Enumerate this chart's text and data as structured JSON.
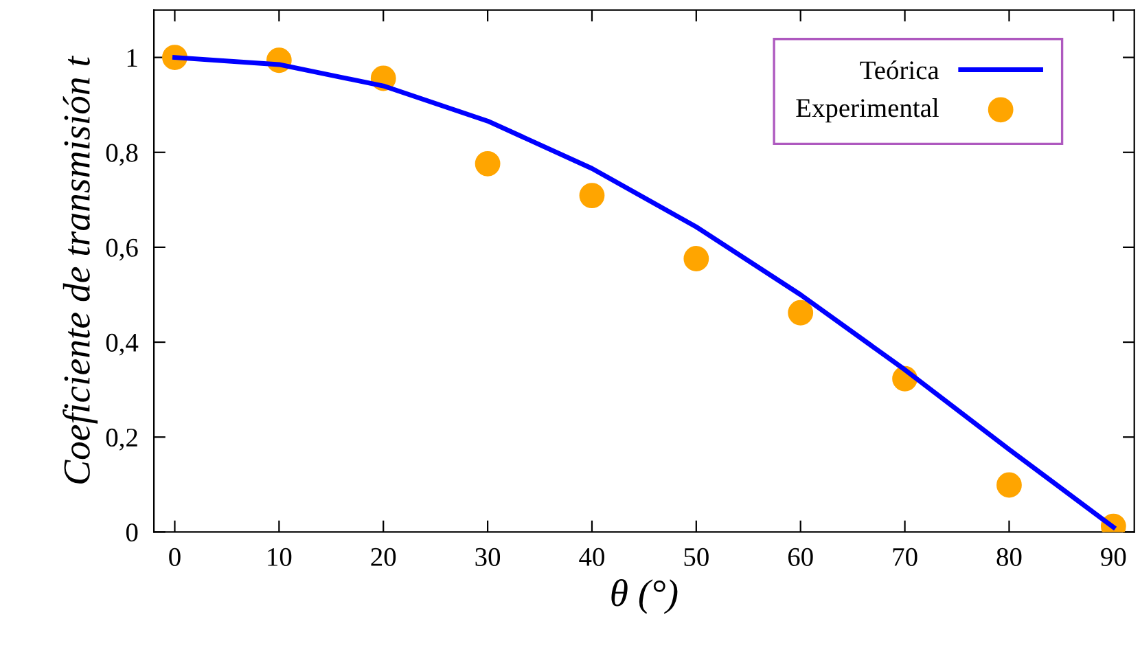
{
  "chart_data": {
    "type": "line",
    "xlabel": "θ (°)",
    "ylabel": "Coeficiente de transmisión t",
    "x": [
      0,
      10,
      20,
      30,
      40,
      50,
      60,
      70,
      80,
      90
    ],
    "series": [
      {
        "name": "Teórica",
        "color": "#0000ff",
        "values": [
          1.0,
          0.985,
          0.94,
          0.866,
          0.766,
          0.643,
          0.5,
          0.342,
          0.174,
          0.01
        ]
      },
      {
        "name": "Experimental",
        "type": "scatter",
        "color": "#ffa500",
        "values": [
          1.0,
          0.994,
          0.956,
          0.776,
          0.709,
          0.576,
          0.462,
          0.323,
          0.099,
          0.012
        ]
      }
    ],
    "xlim": [
      -2,
      92
    ],
    "ylim": [
      0,
      1.1
    ],
    "xticks": [
      0,
      10,
      20,
      30,
      40,
      50,
      60,
      70,
      80,
      90
    ],
    "yticks": [
      {
        "value": 0,
        "label": "0"
      },
      {
        "value": 0.2,
        "label": "0,2"
      },
      {
        "value": 0.4,
        "label": "0,4"
      },
      {
        "value": 0.6,
        "label": "0,6"
      },
      {
        "value": 0.8,
        "label": "0,8"
      },
      {
        "value": 1,
        "label": "1"
      }
    ],
    "legend": "top right",
    "grid": false
  }
}
